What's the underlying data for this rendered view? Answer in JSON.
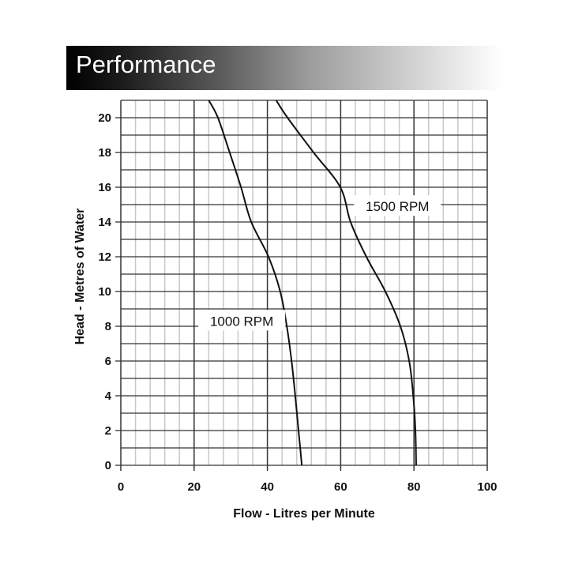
{
  "header": {
    "title": "Performance"
  },
  "chart_data": {
    "type": "line",
    "title": "Performance",
    "xlabel": "Flow - Litres per Minute",
    "ylabel": "Head - Metres of Water",
    "xlim": [
      0,
      100
    ],
    "ylim": [
      0,
      21
    ],
    "xticks": [
      0,
      20,
      40,
      60,
      80,
      100
    ],
    "yticks": [
      0,
      2,
      4,
      6,
      8,
      10,
      12,
      14,
      16,
      18,
      20
    ],
    "grid": true,
    "legend_position": "inline labels",
    "series": [
      {
        "name": "1000 RPM",
        "x": [
          24,
          26.5,
          29.7,
          32.8,
          35.6,
          40.3,
          43.5,
          45.3,
          46.6,
          47.6,
          48.5,
          49.4
        ],
        "y": [
          21,
          20,
          18,
          16,
          14,
          12,
          10,
          8,
          6,
          4,
          2,
          0
        ]
      },
      {
        "name": "1500 RPM",
        "x": [
          42.4,
          45.5,
          52.6,
          59.9,
          62.7,
          67,
          72.2,
          76.3,
          78.7,
          79.8,
          80.4,
          80.6
        ],
        "y": [
          21,
          20,
          18,
          16,
          14,
          12,
          10,
          8,
          6,
          4,
          2,
          0
        ]
      }
    ],
    "annotations": [
      {
        "text": "1000 RPM",
        "x": 33,
        "y": 8.3
      },
      {
        "text": "1500 RPM",
        "x": 75.5,
        "y": 14.9
      }
    ]
  }
}
